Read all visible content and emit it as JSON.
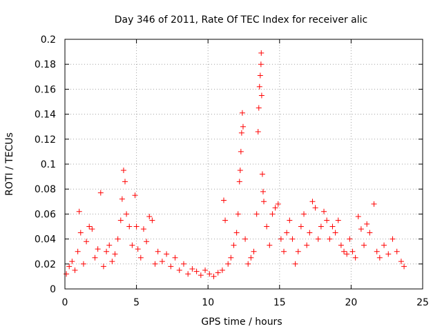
{
  "chart_data": {
    "type": "scatter",
    "title": "Day 346 of 2011, Rate Of TEC Index for receiver alic",
    "xlabel": "GPS time / hours",
    "ylabel": "ROTI / TECUs",
    "xlim": [
      0,
      25
    ],
    "ylim": [
      0,
      0.2
    ],
    "xticks": [
      0,
      5,
      10,
      15,
      20,
      25
    ],
    "yticks": [
      0,
      0.02,
      0.04,
      0.06,
      0.08,
      0.1,
      0.12,
      0.14,
      0.16,
      0.18,
      0.2
    ],
    "xtick_labels": [
      "0",
      "5",
      "10",
      "15",
      "20",
      "25"
    ],
    "ytick_labels": [
      "0",
      "0.02",
      "0.04",
      "0.06",
      "0.08",
      "0.1",
      "0.12",
      "0.14",
      "0.16",
      "0.18",
      "0.2"
    ],
    "grid": true,
    "marker": "+",
    "color": "#ff0000",
    "series": [
      {
        "name": "ROTI",
        "points": [
          [
            0.1,
            0.012
          ],
          [
            0.3,
            0.018
          ],
          [
            0.5,
            0.022
          ],
          [
            0.7,
            0.015
          ],
          [
            0.9,
            0.03
          ],
          [
            1.0,
            0.062
          ],
          [
            1.1,
            0.045
          ],
          [
            1.3,
            0.02
          ],
          [
            1.5,
            0.038
          ],
          [
            1.7,
            0.05
          ],
          [
            1.9,
            0.048
          ],
          [
            2.1,
            0.025
          ],
          [
            2.3,
            0.032
          ],
          [
            2.5,
            0.077
          ],
          [
            2.7,
            0.018
          ],
          [
            2.9,
            0.03
          ],
          [
            3.1,
            0.035
          ],
          [
            3.3,
            0.022
          ],
          [
            3.5,
            0.028
          ],
          [
            3.7,
            0.04
          ],
          [
            3.9,
            0.055
          ],
          [
            4.0,
            0.072
          ],
          [
            4.1,
            0.095
          ],
          [
            4.2,
            0.086
          ],
          [
            4.3,
            0.06
          ],
          [
            4.5,
            0.05
          ],
          [
            4.7,
            0.035
          ],
          [
            4.9,
            0.075
          ],
          [
            5.0,
            0.05
          ],
          [
            5.1,
            0.032
          ],
          [
            5.3,
            0.025
          ],
          [
            5.5,
            0.048
          ],
          [
            5.7,
            0.038
          ],
          [
            5.9,
            0.058
          ],
          [
            6.1,
            0.055
          ],
          [
            6.3,
            0.02
          ],
          [
            6.5,
            0.03
          ],
          [
            6.8,
            0.022
          ],
          [
            7.1,
            0.028
          ],
          [
            7.4,
            0.018
          ],
          [
            7.7,
            0.025
          ],
          [
            8.0,
            0.015
          ],
          [
            8.3,
            0.02
          ],
          [
            8.6,
            0.012
          ],
          [
            8.9,
            0.016
          ],
          [
            9.2,
            0.014
          ],
          [
            9.5,
            0.011
          ],
          [
            9.8,
            0.015
          ],
          [
            10.1,
            0.012
          ],
          [
            10.4,
            0.01
          ],
          [
            10.7,
            0.013
          ],
          [
            11.0,
            0.015
          ],
          [
            11.1,
            0.071
          ],
          [
            11.2,
            0.055
          ],
          [
            11.4,
            0.02
          ],
          [
            11.6,
            0.025
          ],
          [
            11.8,
            0.035
          ],
          [
            12.0,
            0.045
          ],
          [
            12.1,
            0.06
          ],
          [
            12.2,
            0.086
          ],
          [
            12.25,
            0.095
          ],
          [
            12.3,
            0.11
          ],
          [
            12.35,
            0.125
          ],
          [
            12.4,
            0.141
          ],
          [
            12.45,
            0.13
          ],
          [
            12.6,
            0.04
          ],
          [
            12.8,
            0.02
          ],
          [
            13.0,
            0.025
          ],
          [
            13.2,
            0.03
          ],
          [
            13.4,
            0.06
          ],
          [
            13.5,
            0.126
          ],
          [
            13.55,
            0.145
          ],
          [
            13.6,
            0.162
          ],
          [
            13.65,
            0.171
          ],
          [
            13.7,
            0.18
          ],
          [
            13.72,
            0.189
          ],
          [
            13.75,
            0.155
          ],
          [
            13.8,
            0.092
          ],
          [
            13.85,
            0.078
          ],
          [
            13.9,
            0.07
          ],
          [
            14.1,
            0.05
          ],
          [
            14.3,
            0.035
          ],
          [
            14.5,
            0.06
          ],
          [
            14.7,
            0.065
          ],
          [
            14.9,
            0.068
          ],
          [
            15.1,
            0.04
          ],
          [
            15.3,
            0.03
          ],
          [
            15.5,
            0.045
          ],
          [
            15.7,
            0.055
          ],
          [
            15.9,
            0.04
          ],
          [
            16.1,
            0.02
          ],
          [
            16.3,
            0.03
          ],
          [
            16.5,
            0.05
          ],
          [
            16.7,
            0.06
          ],
          [
            16.9,
            0.035
          ],
          [
            17.1,
            0.045
          ],
          [
            17.3,
            0.07
          ],
          [
            17.5,
            0.065
          ],
          [
            17.7,
            0.04
          ],
          [
            17.9,
            0.05
          ],
          [
            18.1,
            0.062
          ],
          [
            18.3,
            0.055
          ],
          [
            18.5,
            0.04
          ],
          [
            18.7,
            0.05
          ],
          [
            18.9,
            0.045
          ],
          [
            19.1,
            0.055
          ],
          [
            19.3,
            0.035
          ],
          [
            19.5,
            0.03
          ],
          [
            19.7,
            0.028
          ],
          [
            19.9,
            0.04
          ],
          [
            20.1,
            0.03
          ],
          [
            20.3,
            0.025
          ],
          [
            20.5,
            0.058
          ],
          [
            20.7,
            0.048
          ],
          [
            20.9,
            0.035
          ],
          [
            21.1,
            0.052
          ],
          [
            21.3,
            0.045
          ],
          [
            21.6,
            0.068
          ],
          [
            21.8,
            0.03
          ],
          [
            22.0,
            0.025
          ],
          [
            22.3,
            0.035
          ],
          [
            22.6,
            0.028
          ],
          [
            22.9,
            0.04
          ],
          [
            23.2,
            0.03
          ],
          [
            23.5,
            0.022
          ],
          [
            23.7,
            0.018
          ]
        ]
      }
    ]
  }
}
